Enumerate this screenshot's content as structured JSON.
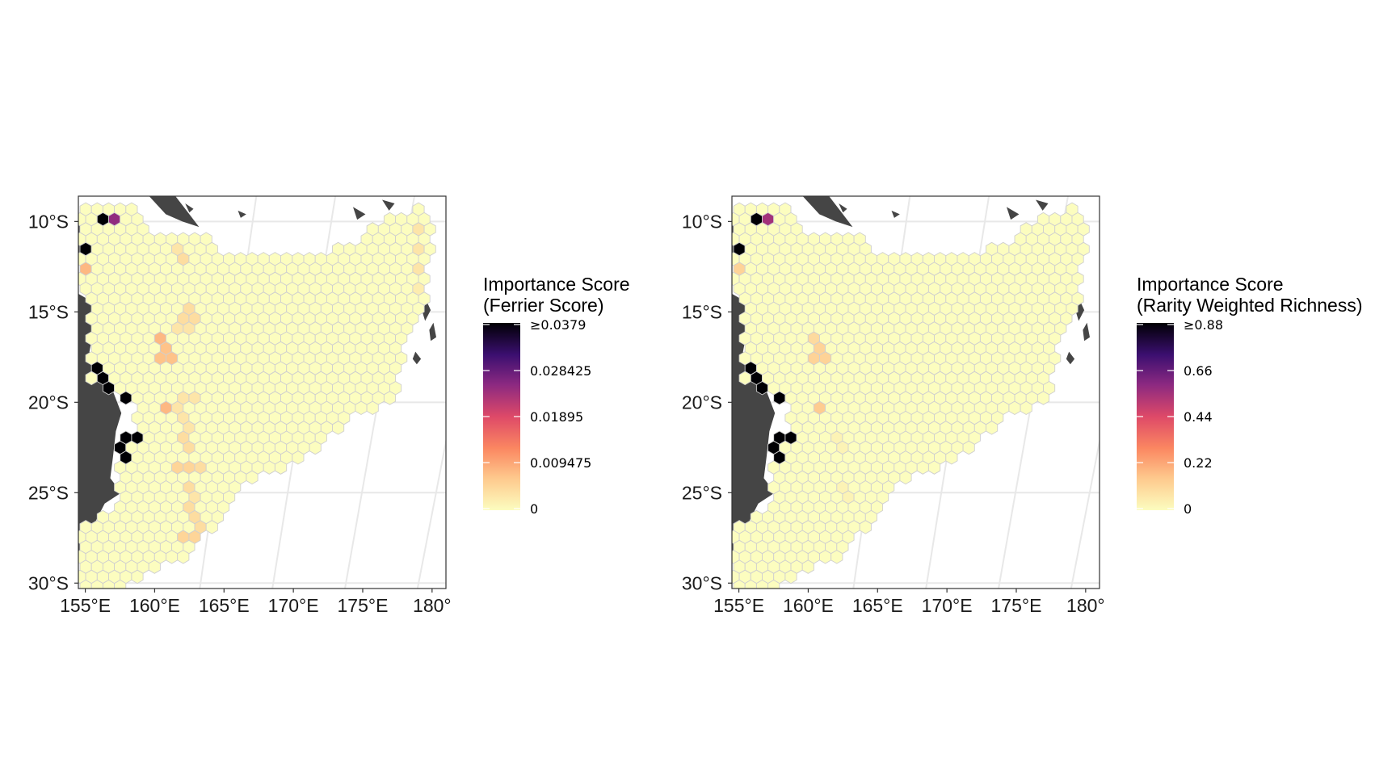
{
  "panels": [
    {
      "id": "ferrier",
      "legend": {
        "title_line1": "Importance Score",
        "title_line2": "(Ferrier Score)",
        "ticks": [
          "≥0.0379",
          "0.028425",
          "0.01895",
          "0.009475",
          "0"
        ]
      }
    },
    {
      "id": "rwr",
      "legend": {
        "title_line1": "Importance Score",
        "title_line2": "(Rarity Weighted Richness)",
        "ticks": [
          "≥0.88",
          "0.66",
          "0.44",
          "0.22",
          "0"
        ]
      }
    }
  ],
  "axes": {
    "x_ticks": [
      "155°E",
      "160°E",
      "165°E",
      "170°E",
      "175°E",
      "180°"
    ],
    "y_ticks": [
      "10°S",
      "15°S",
      "20°S",
      "25°S",
      "30°S"
    ]
  },
  "colors": {
    "land": "#454545",
    "hex_stroke": "#cfcfcf",
    "gridline": "#e8e8e8",
    "scale": [
      "#fcfdbf",
      "#feb078",
      "#f1605d",
      "#b73779",
      "#721f81",
      "#2c115f",
      "#000004"
    ]
  },
  "chart_data": [
    {
      "type": "heatmap",
      "title": "",
      "legend_title": "Importance Score (Ferrier Score)",
      "xlabel": "",
      "ylabel": "",
      "xlim": [
        154.5,
        181
      ],
      "ylim": [
        -30.3,
        -8.6
      ],
      "color_scale": "magma (reversed)",
      "color_range": [
        0,
        0.0379
      ],
      "legend_ticks": [
        0,
        0.009475,
        0.01895,
        0.028425,
        0.0379
      ],
      "grid": true,
      "legend_placement": "right",
      "high_cells": [
        {
          "lon": 156.0,
          "lat": -9.8,
          "value": 0.0379
        },
        {
          "lon": 157.2,
          "lat": -9.8,
          "value": 0.025
        },
        {
          "lon": 154.9,
          "lat": -11.3,
          "value": 0.0379
        },
        {
          "lon": 155.6,
          "lat": -18.2,
          "value": 0.0379
        },
        {
          "lon": 156.4,
          "lat": -19.0,
          "value": 0.0379
        },
        {
          "lon": 157.8,
          "lat": -19.8,
          "value": 0.0379
        },
        {
          "lon": 158.3,
          "lat": -22.0,
          "value": 0.0379
        },
        {
          "lon": 157.8,
          "lat": -22.8,
          "value": 0.0379
        },
        {
          "lon": 155.4,
          "lat": -25.1,
          "value": 0.03
        },
        {
          "lon": 155.2,
          "lat": -12.8,
          "value": 0.008
        },
        {
          "lon": 160.3,
          "lat": -16.7,
          "value": 0.008
        },
        {
          "lon": 160.8,
          "lat": -17.4,
          "value": 0.007
        },
        {
          "lon": 160.8,
          "lat": -20.5,
          "value": 0.008
        },
        {
          "lon": 162.3,
          "lat": -12.1,
          "value": 0.004
        },
        {
          "lon": 161.8,
          "lat": -11.4,
          "value": 0.003
        },
        {
          "lon": 162.5,
          "lat": -15.2,
          "value": 0.004
        },
        {
          "lon": 162.0,
          "lat": -16.0,
          "value": 0.003
        },
        {
          "lon": 162.5,
          "lat": -19.8,
          "value": 0.003
        },
        {
          "lon": 162.0,
          "lat": -20.5,
          "value": 0.003
        },
        {
          "lon": 162.5,
          "lat": -21.3,
          "value": 0.003
        },
        {
          "lon": 162.0,
          "lat": -22.0,
          "value": 0.004
        },
        {
          "lon": 162.5,
          "lat": -22.8,
          "value": 0.004
        },
        {
          "lon": 162.0,
          "lat": -23.6,
          "value": 0.005
        },
        {
          "lon": 163.0,
          "lat": -23.6,
          "value": 0.004
        },
        {
          "lon": 162.5,
          "lat": -24.4,
          "value": 0.004
        },
        {
          "lon": 163.0,
          "lat": -25.1,
          "value": 0.003
        },
        {
          "lon": 162.5,
          "lat": -26.0,
          "value": 0.004
        },
        {
          "lon": 163.0,
          "lat": -26.7,
          "value": 0.004
        },
        {
          "lon": 162.5,
          "lat": -27.5,
          "value": 0.005
        },
        {
          "lon": 178.8,
          "lat": -10.6,
          "value": 0.003
        },
        {
          "lon": 179.3,
          "lat": -11.4,
          "value": 0.003
        },
        {
          "lon": 178.8,
          "lat": -12.8,
          "value": 0.003
        },
        {
          "lon": 179.3,
          "lat": -13.6,
          "value": 0.002
        }
      ]
    },
    {
      "type": "heatmap",
      "title": "",
      "legend_title": "Importance Score (Rarity Weighted Richness)",
      "xlabel": "",
      "ylabel": "",
      "xlim": [
        154.5,
        181
      ],
      "ylim": [
        -30.3,
        -8.6
      ],
      "color_scale": "magma (reversed)",
      "color_range": [
        0,
        0.88
      ],
      "legend_ticks": [
        0,
        0.22,
        0.44,
        0.66,
        0.88
      ],
      "grid": true,
      "legend_placement": "right",
      "high_cells": [
        {
          "lon": 156.0,
          "lat": -9.8,
          "value": 0.88
        },
        {
          "lon": 157.2,
          "lat": -9.8,
          "value": 0.55
        },
        {
          "lon": 154.9,
          "lat": -11.3,
          "value": 0.88
        },
        {
          "lon": 155.6,
          "lat": -18.2,
          "value": 0.88
        },
        {
          "lon": 156.4,
          "lat": -19.0,
          "value": 0.88
        },
        {
          "lon": 157.8,
          "lat": -19.8,
          "value": 0.88
        },
        {
          "lon": 158.3,
          "lat": -22.0,
          "value": 0.88
        },
        {
          "lon": 157.8,
          "lat": -22.8,
          "value": 0.88
        },
        {
          "lon": 155.4,
          "lat": -25.1,
          "value": 0.7
        },
        {
          "lon": 155.2,
          "lat": -12.8,
          "value": 0.12
        },
        {
          "lon": 160.3,
          "lat": -16.7,
          "value": 0.1
        },
        {
          "lon": 160.8,
          "lat": -17.4,
          "value": 0.12
        },
        {
          "lon": 160.8,
          "lat": -20.5,
          "value": 0.14
        },
        {
          "lon": 162.0,
          "lat": -22.0,
          "value": 0.03
        },
        {
          "lon": 162.5,
          "lat": -22.8,
          "value": 0.03
        },
        {
          "lon": 162.5,
          "lat": -24.4,
          "value": 0.03
        },
        {
          "lon": 163.0,
          "lat": -25.1,
          "value": 0.03
        }
      ]
    }
  ]
}
